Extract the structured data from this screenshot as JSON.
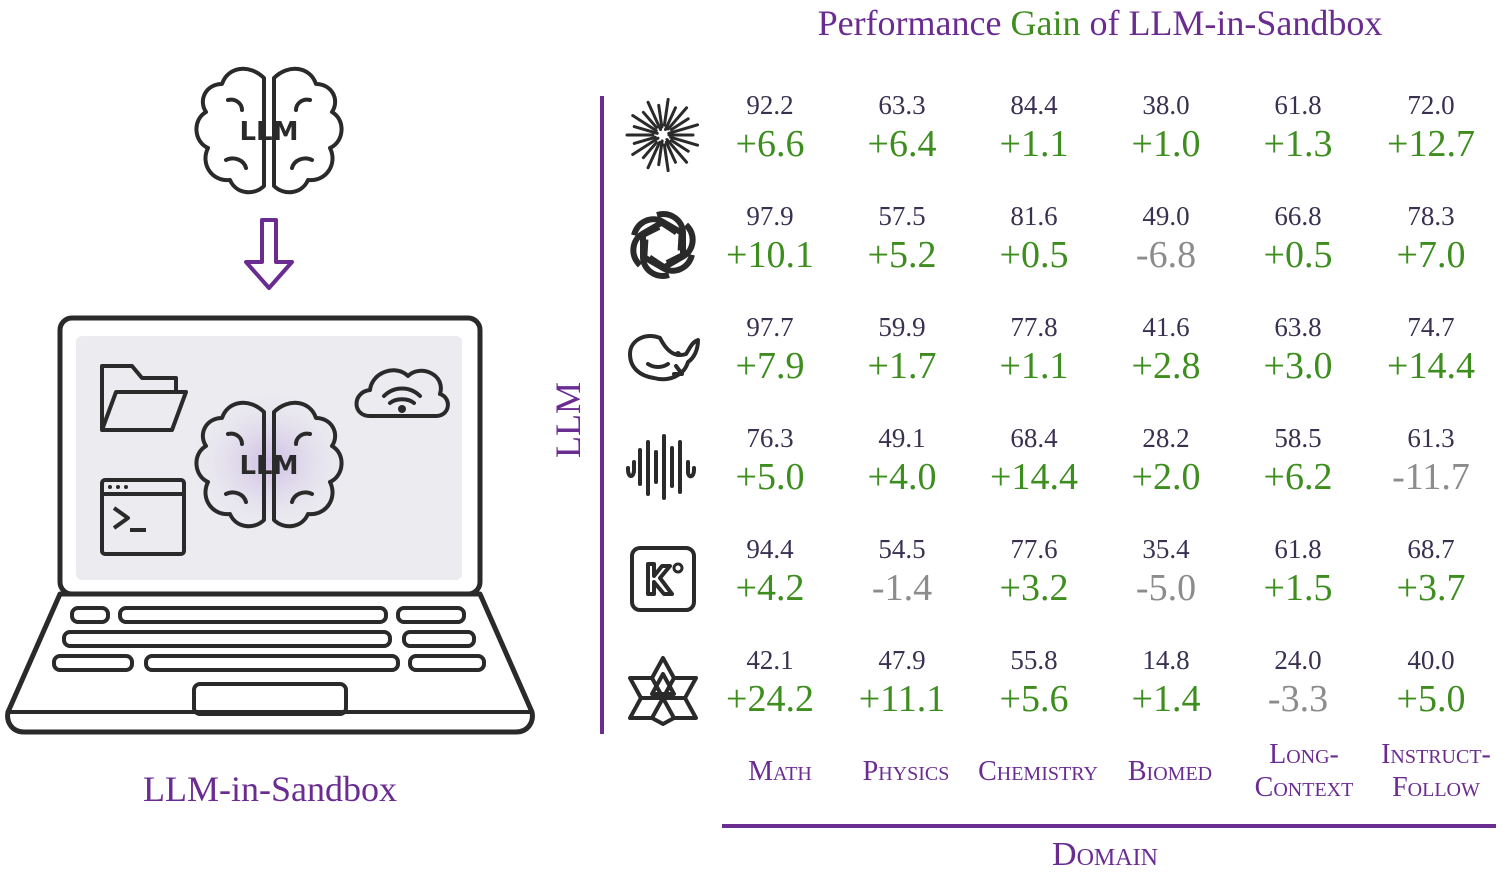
{
  "title": {
    "part1": "Performance",
    "part2": "Gain",
    "part3": "of LLM-in-Sandbox"
  },
  "left": {
    "caption": "LLM-in-Sandbox",
    "brain_label_top": "LLM",
    "brain_label_screen": "LLM"
  },
  "axes": {
    "row_label": "LLM",
    "col_label": "Domain"
  },
  "domains": [
    {
      "line1": "Math",
      "line2": ""
    },
    {
      "line1": "Physics",
      "line2": ""
    },
    {
      "line1": "Chemistry",
      "line2": ""
    },
    {
      "line1": "Biomed",
      "line2": ""
    },
    {
      "line1": "Long-",
      "line2": "Context"
    },
    {
      "line1": "Instruct-",
      "line2": "Follow"
    }
  ],
  "rows": [
    {
      "icon": "starburst-icon",
      "base": [
        "92.2",
        "63.3",
        "84.4",
        "38.0",
        "61.8",
        "72.0"
      ],
      "gain": [
        "+6.6",
        "+6.4",
        "+1.1",
        "+1.0",
        "+1.3",
        "+12.7"
      ]
    },
    {
      "icon": "openai-knot-icon",
      "base": [
        "97.9",
        "57.5",
        "81.6",
        "49.0",
        "66.8",
        "78.3"
      ],
      "gain": [
        "+10.1",
        "+5.2",
        "+0.5",
        "-6.8",
        "+0.5",
        "+7.0"
      ]
    },
    {
      "icon": "whale-icon",
      "base": [
        "97.7",
        "59.9",
        "77.8",
        "41.6",
        "63.8",
        "74.7"
      ],
      "gain": [
        "+7.9",
        "+1.7",
        "+1.1",
        "+2.8",
        "+3.0",
        "+14.4"
      ]
    },
    {
      "icon": "waveform-icon",
      "base": [
        "76.3",
        "49.1",
        "68.4",
        "28.2",
        "58.5",
        "61.3"
      ],
      "gain": [
        "+5.0",
        "+4.0",
        "+14.4",
        "+2.0",
        "+6.2",
        "-11.7"
      ]
    },
    {
      "icon": "k-square-icon",
      "base": [
        "94.4",
        "54.5",
        "77.6",
        "35.4",
        "61.8",
        "68.7"
      ],
      "gain": [
        "+4.2",
        "-1.4",
        "+3.2",
        "-5.0",
        "+1.5",
        "+3.7"
      ]
    },
    {
      "icon": "hexagram-icon",
      "base": [
        "42.1",
        "47.9",
        "55.8",
        "14.8",
        "24.0",
        "40.0"
      ],
      "gain": [
        "+24.2",
        "+11.1",
        "+5.6",
        "+1.4",
        "-3.3",
        "+5.0"
      ]
    }
  ],
  "colors": {
    "purple": "#6a2c91",
    "green": "#3e8e1f",
    "gray": "#8c8c8c",
    "dark": "#3a3050"
  }
}
